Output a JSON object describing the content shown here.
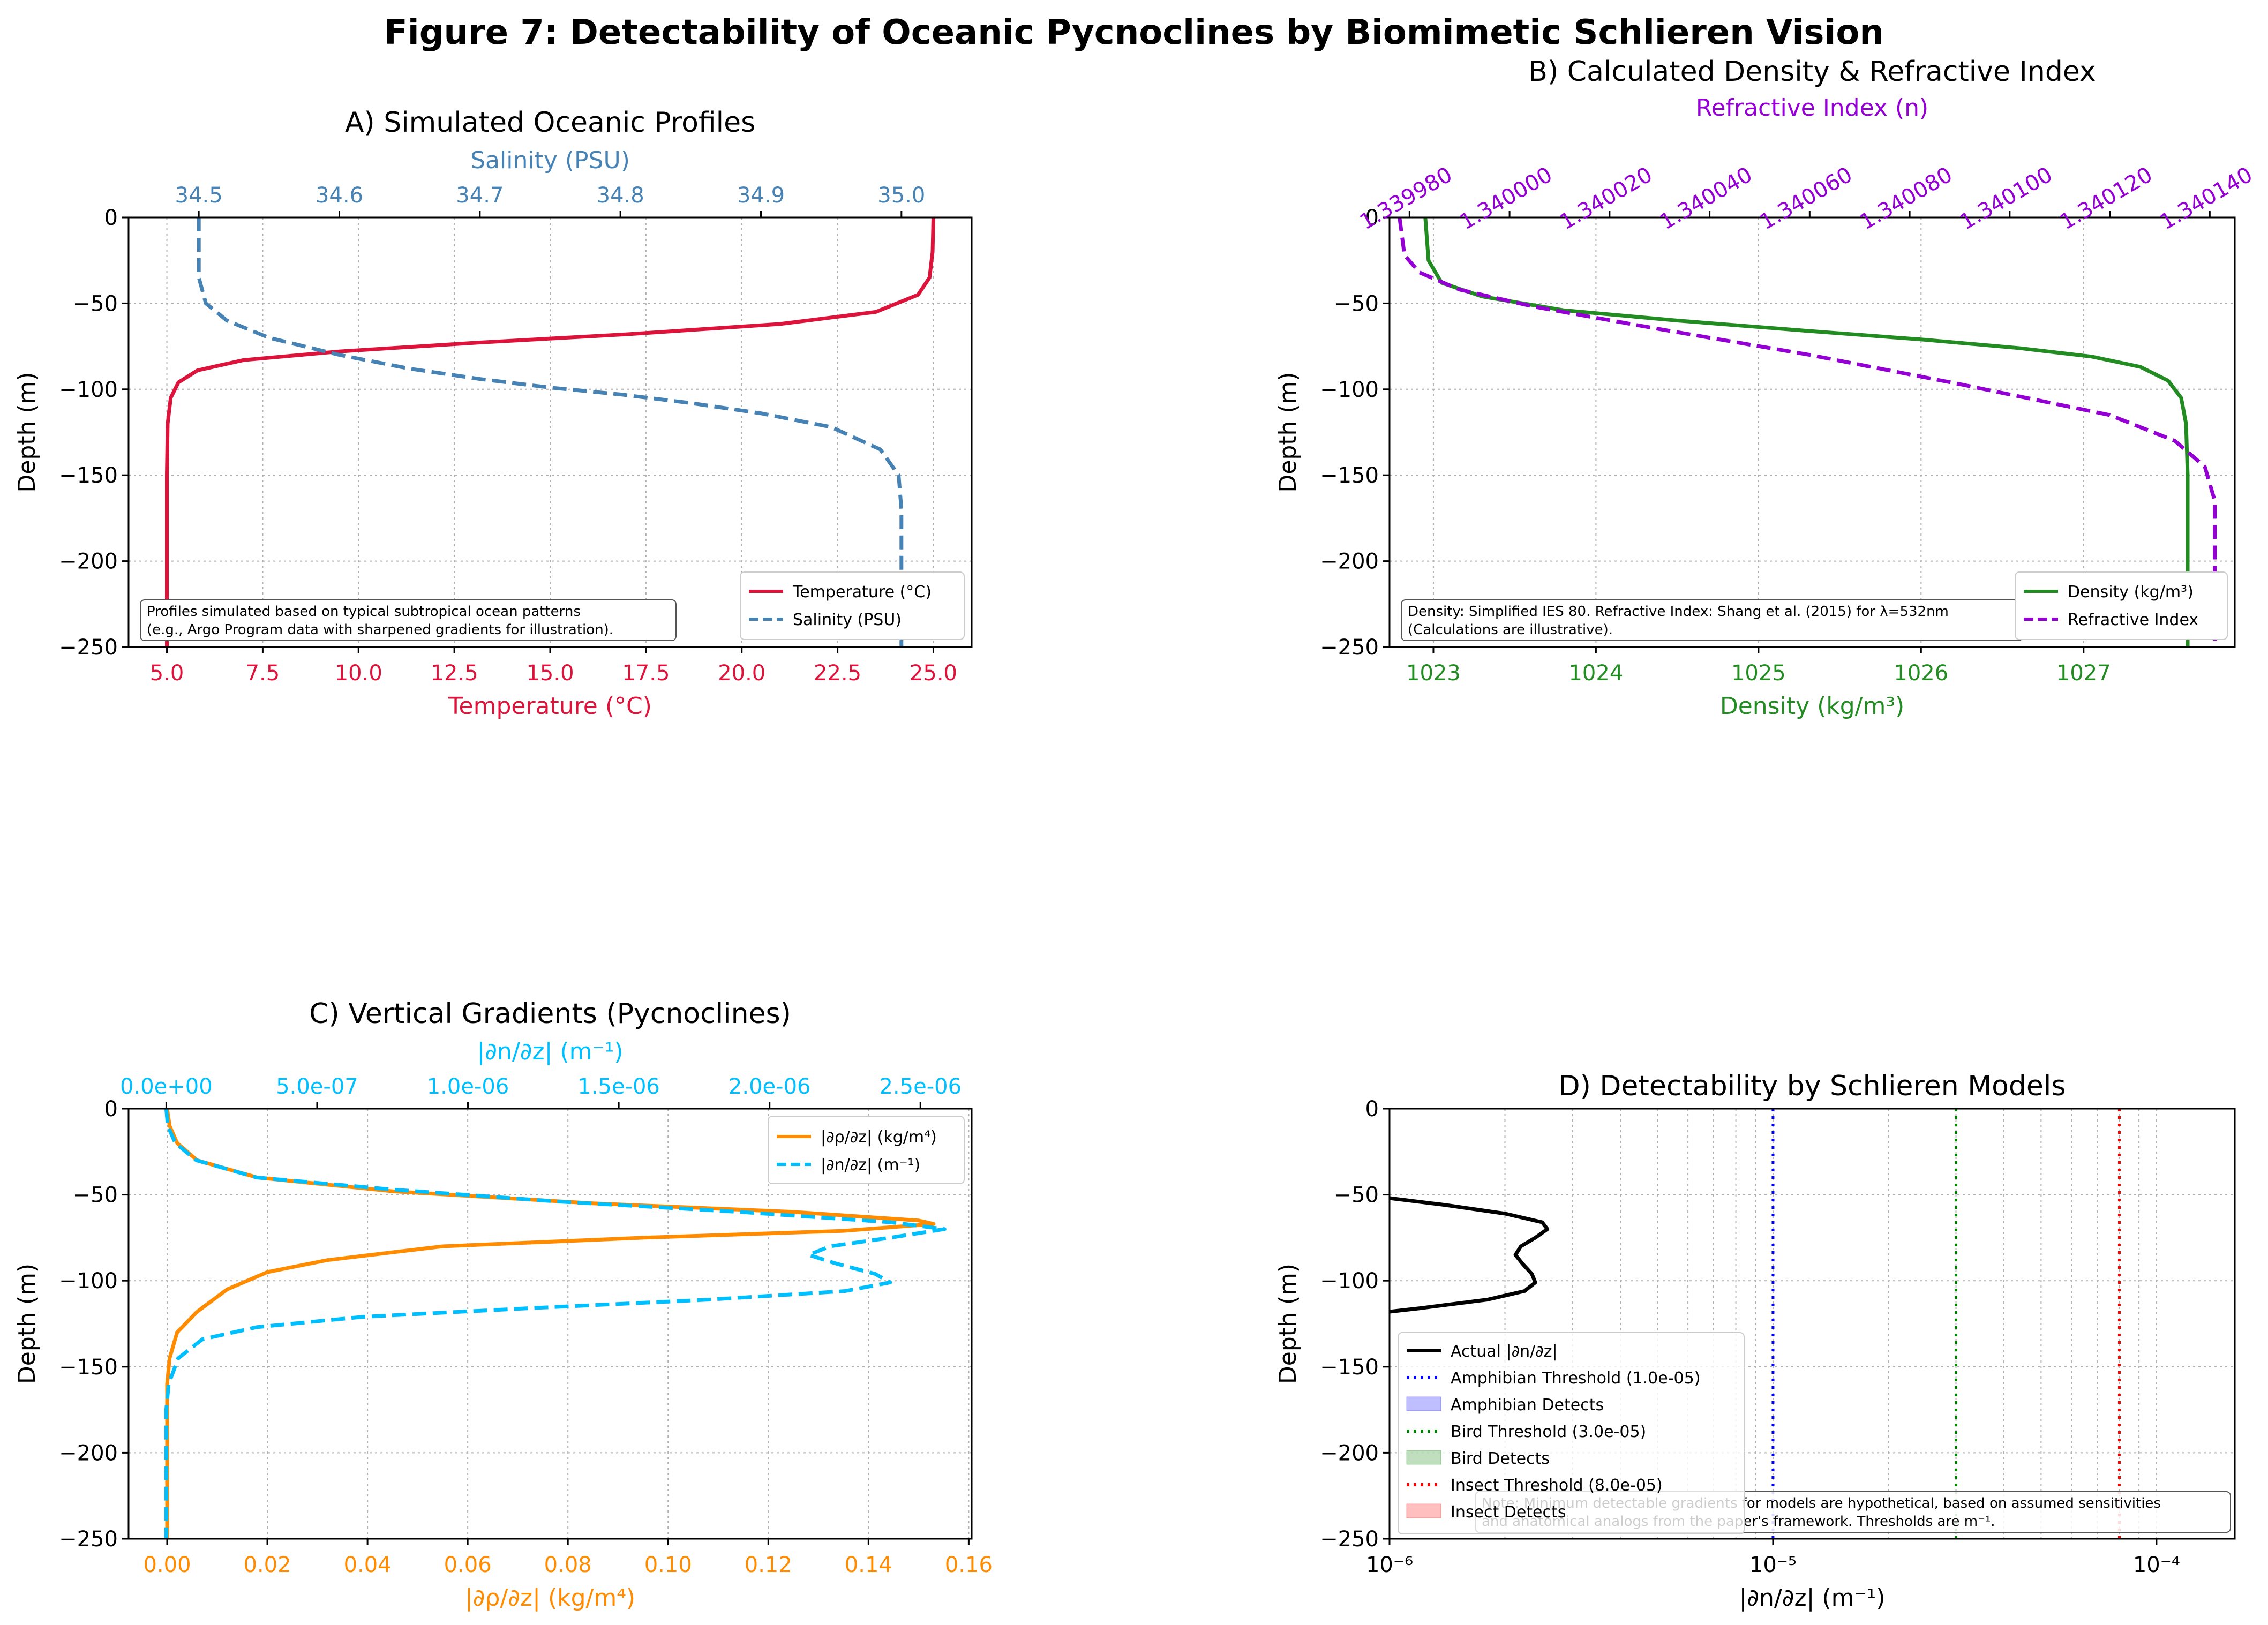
{
  "figure_title": "Figure 7: Detectability of Oceanic Pycnoclines by Biomimetic Schlieren Vision",
  "colors": {
    "temperature": "#dc143c",
    "salinity": "#4682b4",
    "density": "#228b22",
    "refractive": "#9400d3",
    "drho": "#ff8c00",
    "dn": "#00bfff",
    "actual": "#000000",
    "amphibian": "#0000ff",
    "bird": "#008000",
    "insect": "#ff0000"
  },
  "chart_data": [
    {
      "id": "A",
      "type": "line",
      "title": "A) Simulated Oceanic Profiles",
      "xlabel": "Temperature (°C)",
      "x2label": "Salinity (PSU)",
      "ylabel": "Depth (m)",
      "xlim": [
        4.0,
        26.0
      ],
      "x2lim": [
        34.45,
        35.05
      ],
      "ylim": [
        -250,
        0
      ],
      "xticks": [
        "5.0",
        "7.5",
        "10.0",
        "12.5",
        "15.0",
        "17.5",
        "20.0",
        "22.5",
        "25.0"
      ],
      "x2ticks": [
        "34.5",
        "34.6",
        "34.7",
        "34.8",
        "34.9",
        "35.0"
      ],
      "yticks": [
        "0",
        "−50",
        "−100",
        "−150",
        "−200",
        "−250"
      ],
      "grid": true,
      "legend_loc": "lower right",
      "legend": [
        "Temperature (°C)",
        "Salinity (PSU)"
      ],
      "note": [
        "Profiles simulated based on typical subtropical ocean patterns",
        "(e.g., Argo Program data with sharpened gradients for illustration)."
      ],
      "series": [
        {
          "name": "Temperature (°C)",
          "axis": "bottom",
          "style": "solid",
          "color": "#dc143c",
          "points": [
            [
              25.0,
              0
            ],
            [
              24.98,
              -20
            ],
            [
              24.9,
              -35
            ],
            [
              24.6,
              -45
            ],
            [
              23.5,
              -55
            ],
            [
              21.0,
              -62
            ],
            [
              17.0,
              -68
            ],
            [
              13.0,
              -73
            ],
            [
              9.5,
              -78
            ],
            [
              7.0,
              -83
            ],
            [
              5.8,
              -89
            ],
            [
              5.3,
              -96
            ],
            [
              5.1,
              -105
            ],
            [
              5.02,
              -120
            ],
            [
              5.0,
              -150
            ],
            [
              5.0,
              -250
            ]
          ]
        },
        {
          "name": "Salinity (PSU)",
          "axis": "top",
          "style": "dashed",
          "color": "#4682b4",
          "points": [
            [
              34.5,
              0
            ],
            [
              34.5,
              -35
            ],
            [
              34.505,
              -50
            ],
            [
              34.52,
              -60
            ],
            [
              34.55,
              -70
            ],
            [
              34.6,
              -80
            ],
            [
              34.65,
              -88
            ],
            [
              34.7,
              -94
            ],
            [
              34.75,
              -99
            ],
            [
              34.8,
              -103
            ],
            [
              34.85,
              -108
            ],
            [
              34.9,
              -114
            ],
            [
              34.95,
              -122
            ],
            [
              34.985,
              -135
            ],
            [
              34.998,
              -150
            ],
            [
              35.0,
              -170
            ],
            [
              35.0,
              -250
            ]
          ]
        }
      ]
    },
    {
      "id": "B",
      "type": "line",
      "title": "B) Calculated Density & Refractive Index",
      "xlabel": "Density (kg/m³)",
      "x2label": "Refractive Index (n)",
      "ylabel": "Depth (m)",
      "xlim": [
        1022.73,
        1027.93
      ],
      "x2lim": [
        1.339976,
        1.340145
      ],
      "ylim": [
        -250,
        0
      ],
      "xticks": [
        "1023",
        "1024",
        "1025",
        "1026",
        "1027"
      ],
      "x2ticks": [
        "1.339980",
        "1.340000",
        "1.340020",
        "1.340040",
        "1.340060",
        "1.340080",
        "1.340100",
        "1.340120",
        "1.340140"
      ],
      "yticks": [
        "0",
        "−50",
        "−100",
        "−150",
        "−200",
        "−250"
      ],
      "grid": true,
      "legend_loc": "lower right",
      "legend": [
        "Density (kg/m³)",
        "Refractive Index"
      ],
      "note": [
        "Density: Simplified IES 80. Refractive Index: Shang et al. (2015) for λ=532nm",
        "(Calculations are illustrative)."
      ],
      "series": [
        {
          "name": "Density (kg/m³)",
          "axis": "bottom",
          "style": "solid",
          "color": "#228b22",
          "points": [
            [
              1022.95,
              0
            ],
            [
              1022.97,
              -25
            ],
            [
              1023.05,
              -38
            ],
            [
              1023.3,
              -46
            ],
            [
              1023.8,
              -54
            ],
            [
              1024.5,
              -60
            ],
            [
              1025.3,
              -66
            ],
            [
              1026.0,
              -71
            ],
            [
              1026.6,
              -76
            ],
            [
              1027.05,
              -81
            ],
            [
              1027.35,
              -87
            ],
            [
              1027.52,
              -95
            ],
            [
              1027.6,
              -105
            ],
            [
              1027.63,
              -120
            ],
            [
              1027.64,
              -150
            ],
            [
              1027.64,
              -250
            ]
          ]
        },
        {
          "name": "Refractive Index",
          "axis": "top",
          "style": "dashed",
          "color": "#9400d3",
          "points": [
            [
              1.339978,
              0
            ],
            [
              1.339979,
              -22
            ],
            [
              1.339982,
              -32
            ],
            [
              1.33999,
              -42
            ],
            [
              1.340005,
              -52
            ],
            [
              1.34003,
              -65
            ],
            [
              1.34006,
              -80
            ],
            [
              1.34009,
              -97
            ],
            [
              1.34012,
              -115
            ],
            [
              1.340133,
              -130
            ],
            [
              1.340139,
              -145
            ],
            [
              1.340141,
              -165
            ],
            [
              1.340141,
              -250
            ]
          ]
        }
      ]
    },
    {
      "id": "C",
      "type": "line",
      "title": "C) Vertical Gradients (Pycnoclines)",
      "xlabel": "|∂ρ/∂z| (kg/m⁴)",
      "x2label": "|∂n/∂z| (m⁻¹)",
      "ylabel": "Depth (m)",
      "xlim": [
        -0.0077,
        0.1606
      ],
      "x2lim": [
        -1.25e-07,
        2.67e-06
      ],
      "ylim": [
        -250,
        0
      ],
      "xticks": [
        "0.00",
        "0.02",
        "0.04",
        "0.06",
        "0.08",
        "0.10",
        "0.12",
        "0.14",
        "0.16"
      ],
      "x2ticks": [
        "0.0e+00",
        "5.0e-07",
        "1.0e-06",
        "1.5e-06",
        "2.0e-06",
        "2.5e-06"
      ],
      "yticks": [
        "0",
        "−50",
        "−100",
        "−150",
        "−200",
        "−250"
      ],
      "grid": true,
      "legend_loc": "upper right",
      "legend": [
        "|∂ρ/∂z| (kg/m⁴)",
        "|∂n/∂z| (m⁻¹)"
      ],
      "series": [
        {
          "name": "|∂ρ/∂z| (kg/m⁴)",
          "axis": "bottom",
          "style": "solid",
          "color": "#ff8c00",
          "points": [
            [
              0,
              0
            ],
            [
              0.0005,
              -10
            ],
            [
              0.002,
              -20
            ],
            [
              0.006,
              -30
            ],
            [
              0.018,
              -40
            ],
            [
              0.045,
              -48
            ],
            [
              0.085,
              -55
            ],
            [
              0.125,
              -60
            ],
            [
              0.15,
              -65
            ],
            [
              0.153,
              -67
            ],
            [
              0.135,
              -71
            ],
            [
              0.095,
              -75
            ],
            [
              0.055,
              -80
            ],
            [
              0.032,
              -88
            ],
            [
              0.02,
              -95
            ],
            [
              0.012,
              -105
            ],
            [
              0.006,
              -118
            ],
            [
              0.002,
              -130
            ],
            [
              0.0005,
              -145
            ],
            [
              0,
              -160
            ],
            [
              0,
              -250
            ]
          ]
        },
        {
          "name": "|∂n/∂z| (m⁻¹)",
          "axis": "top",
          "style": "dashed",
          "color": "#00bfff",
          "points": [
            [
              0,
              0
            ],
            [
              5e-09,
              -10
            ],
            [
              3e-08,
              -20
            ],
            [
              1e-07,
              -30
            ],
            [
              3e-07,
              -40
            ],
            [
              7.5e-07,
              -47
            ],
            [
              1.3e-06,
              -54
            ],
            [
              1.9e-06,
              -60
            ],
            [
              2.4e-06,
              -66
            ],
            [
              2.58e-06,
              -70
            ],
            [
              2.4e-06,
              -75
            ],
            [
              2.2e-06,
              -80
            ],
            [
              2.13e-06,
              -85
            ],
            [
              2.22e-06,
              -90
            ],
            [
              2.35e-06,
              -96
            ],
            [
              2.4e-06,
              -101
            ],
            [
              2.25e-06,
              -106
            ],
            [
              1.8e-06,
              -111
            ],
            [
              1.2e-06,
              -116
            ],
            [
              6.5e-07,
              -121
            ],
            [
              3e-07,
              -127
            ],
            [
              1.2e-07,
              -134
            ],
            [
              4e-08,
              -145
            ],
            [
              8e-09,
              -160
            ],
            [
              0,
              -175
            ],
            [
              0,
              -250
            ]
          ]
        }
      ]
    },
    {
      "id": "D",
      "type": "line",
      "title": "D) Detectability by Schlieren Models",
      "xlabel": "|∂n/∂z| (m⁻¹)",
      "ylabel": "Depth (m)",
      "xscale": "log",
      "xlim": [
        1e-06,
        0.00016
      ],
      "ylim": [
        -250,
        0
      ],
      "xticks": [
        "10⁻⁶",
        "10⁻⁵",
        "10⁻⁴"
      ],
      "yticks": [
        "0",
        "−50",
        "−100",
        "−150",
        "−200",
        "−250"
      ],
      "grid": true,
      "legend_loc": "lower left",
      "legend": [
        "Actual |∂n/∂z|",
        "Amphibian Threshold (1.0e-05)",
        "Amphibian Detects",
        "Bird Threshold (3.0e-05)",
        "Bird Detects",
        "Insect Threshold (8.0e-05)",
        "Insect Detects"
      ],
      "thresholds": [
        {
          "name": "Amphibian Threshold (1.0e-05)",
          "value": 1e-05,
          "color": "#0000ff"
        },
        {
          "name": "Bird Threshold (3.0e-05)",
          "value": 3e-05,
          "color": "#008000"
        },
        {
          "name": "Insect Threshold (8.0e-05)",
          "value": 8e-05,
          "color": "#ff0000"
        }
      ],
      "note": [
        "Note: Minimum detectable gradients for models are hypothetical, based on assumed sensitivities",
        "and anatomical analogs from the paper's framework. Thresholds are m⁻¹."
      ],
      "series": [
        {
          "name": "Actual |∂n/∂z|",
          "style": "solid",
          "color": "#000000",
          "points": [
            [
              1e-06,
              -52
            ],
            [
              1.4e-06,
              -56
            ],
            [
              2e-06,
              -61
            ],
            [
              2.5e-06,
              -66
            ],
            [
              2.58e-06,
              -70
            ],
            [
              2.4e-06,
              -75
            ],
            [
              2.2e-06,
              -80
            ],
            [
              2.13e-06,
              -85
            ],
            [
              2.22e-06,
              -90
            ],
            [
              2.35e-06,
              -96
            ],
            [
              2.4e-06,
              -101
            ],
            [
              2.25e-06,
              -106
            ],
            [
              1.8e-06,
              -111
            ],
            [
              1.2e-06,
              -116
            ],
            [
              1e-06,
              -118
            ]
          ]
        }
      ]
    }
  ]
}
